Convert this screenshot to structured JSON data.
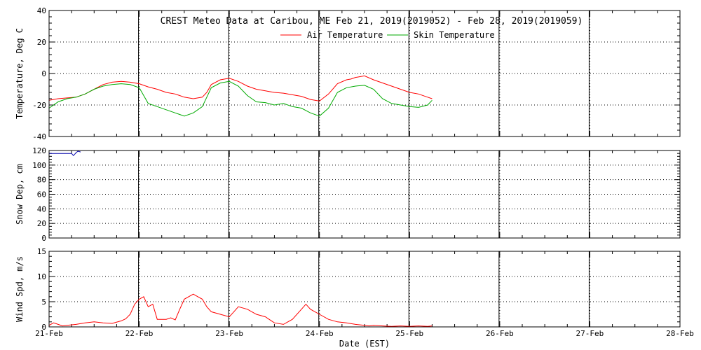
{
  "chart_data": [
    {
      "type": "line",
      "panel": "temperature",
      "title": "CREST Meteo Data at Caribou, ME   Feb 21, 2019(2019052) - Feb 28, 2019(2019059)",
      "ylabel": "Temperature, Deg C",
      "ylim": [
        -40,
        40
      ],
      "yticks": [
        -40,
        -20,
        0,
        20,
        40
      ],
      "xlim": [
        0,
        7
      ],
      "legend_position": "top-center",
      "series": [
        {
          "name": "Air Temperature",
          "color": "#ff0000",
          "x": [
            0,
            0.1,
            0.2,
            0.3,
            0.4,
            0.5,
            0.6,
            0.7,
            0.8,
            0.9,
            1.0,
            1.1,
            1.2,
            1.3,
            1.4,
            1.5,
            1.6,
            1.7,
            1.75,
            1.8,
            1.9,
            2.0,
            2.1,
            2.2,
            2.3,
            2.4,
            2.5,
            2.6,
            2.7,
            2.8,
            2.9,
            3.0,
            3.1,
            3.2,
            3.3,
            3.35,
            3.4,
            3.5,
            3.6,
            3.7,
            3.8,
            3.9,
            4.0,
            4.1,
            4.2,
            4.25
          ],
          "values": [
            -17,
            -16,
            -15.5,
            -15,
            -13,
            -10,
            -7,
            -5.5,
            -5,
            -5.5,
            -6.5,
            -8.5,
            -10,
            -12,
            -13,
            -15,
            -16,
            -15,
            -12,
            -7,
            -4,
            -3,
            -5,
            -8,
            -10,
            -11,
            -12,
            -12.5,
            -13.5,
            -14.5,
            -16.5,
            -17.5,
            -13,
            -6.5,
            -4,
            -3.5,
            -2.5,
            -1.5,
            -4,
            -6,
            -8,
            -10,
            -12,
            -13,
            -15,
            -16
          ]
        },
        {
          "name": "Skin Temperature",
          "color": "#00aa00",
          "x": [
            0,
            0.1,
            0.2,
            0.3,
            0.4,
            0.5,
            0.6,
            0.7,
            0.8,
            0.9,
            1.0,
            1.05,
            1.1,
            1.2,
            1.3,
            1.4,
            1.5,
            1.6,
            1.7,
            1.75,
            1.8,
            1.9,
            2.0,
            2.1,
            2.2,
            2.3,
            2.4,
            2.5,
            2.6,
            2.7,
            2.8,
            2.9,
            3.0,
            3.1,
            3.2,
            3.3,
            3.4,
            3.5,
            3.6,
            3.7,
            3.8,
            3.9,
            4.0,
            4.1,
            4.2,
            4.25
          ],
          "values": [
            -22,
            -18,
            -16,
            -15,
            -13,
            -10,
            -8,
            -7,
            -6.5,
            -7,
            -9,
            -14,
            -19,
            -21,
            -23,
            -25,
            -27,
            -25,
            -21,
            -15,
            -9,
            -6,
            -5,
            -8,
            -14,
            -18,
            -18.5,
            -20,
            -19,
            -21,
            -22,
            -25,
            -27,
            -22,
            -12,
            -9,
            -8,
            -7.5,
            -10,
            -16,
            -19,
            -20,
            -21,
            -21.5,
            -20,
            -17
          ]
        }
      ]
    },
    {
      "type": "line",
      "panel": "snow_depth",
      "ylabel": "Snow Dep, cm",
      "ylim": [
        0,
        120
      ],
      "yticks": [
        0,
        20,
        40,
        60,
        80,
        100,
        120
      ],
      "xlim": [
        0,
        7
      ],
      "series": [
        {
          "color": "#0000aa",
          "x": [
            0,
            0.05,
            0.1,
            0.15,
            0.2,
            0.25,
            0.27,
            0.3,
            0.32,
            0.35
          ],
          "values": [
            116,
            116,
            116,
            116,
            116,
            116,
            113,
            117,
            119,
            118
          ]
        }
      ]
    },
    {
      "type": "line",
      "panel": "wind_speed",
      "ylabel": "Wind Spd, m/s",
      "xlabel": "Date (EST)",
      "ylim": [
        0,
        15
      ],
      "yticks": [
        0,
        5,
        10,
        15
      ],
      "xlim": [
        0,
        7
      ],
      "categories": [
        "21-Feb",
        "22-Feb",
        "23-Feb",
        "24-Feb",
        "25-Feb",
        "26-Feb",
        "27-Feb",
        "28-Feb"
      ],
      "series": [
        {
          "color": "#ff0000",
          "x": [
            0,
            0.05,
            0.1,
            0.15,
            0.2,
            0.3,
            0.4,
            0.5,
            0.6,
            0.7,
            0.8,
            0.85,
            0.9,
            0.95,
            1.0,
            1.05,
            1.1,
            1.15,
            1.2,
            1.3,
            1.35,
            1.4,
            1.45,
            1.5,
            1.6,
            1.65,
            1.7,
            1.75,
            1.8,
            1.9,
            2.0,
            2.05,
            2.1,
            2.2,
            2.3,
            2.4,
            2.5,
            2.6,
            2.7,
            2.8,
            2.85,
            2.9,
            3.0,
            3.1,
            3.2,
            3.3,
            3.4,
            3.5,
            3.55,
            3.6,
            3.7,
            3.8,
            3.9,
            4.0,
            4.1,
            4.2,
            4.25
          ],
          "values": [
            0.3,
            0.8,
            0.5,
            0.2,
            0.3,
            0.5,
            0.8,
            1.0,
            0.8,
            0.7,
            1.2,
            1.6,
            2.5,
            4.5,
            5.5,
            6.0,
            4.0,
            4.5,
            1.5,
            1.5,
            1.8,
            1.4,
            3.5,
            5.5,
            6.5,
            6.0,
            5.5,
            4.0,
            3.0,
            2.5,
            2.0,
            3.0,
            4.0,
            3.5,
            2.5,
            2.0,
            0.8,
            0.5,
            1.5,
            3.5,
            4.5,
            3.5,
            2.5,
            1.5,
            1.0,
            0.8,
            0.5,
            0.3,
            0.2,
            0.3,
            0.2,
            0.1,
            0.2,
            0.1,
            0.2,
            0.1,
            0.2
          ]
        }
      ]
    }
  ]
}
